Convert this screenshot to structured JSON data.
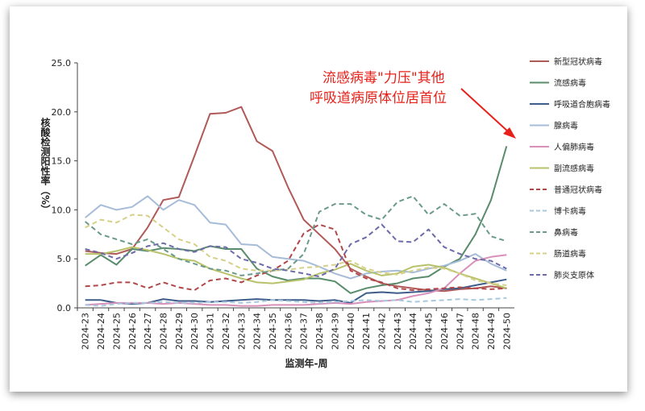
{
  "chart_data": {
    "type": "line",
    "xlabel": "监测年-周",
    "ylabel": "核酸检测阳性率（%）",
    "ylim": [
      0,
      25
    ],
    "yticks": [
      "0.0",
      "5.0",
      "10.0",
      "15.0",
      "20.0",
      "25.0"
    ],
    "grid": false,
    "legend_position": "right",
    "categories": [
      "2024-23",
      "2024-24",
      "2024-25",
      "2024-26",
      "2024-27",
      "2024-28",
      "2024-29",
      "2024-30",
      "2024-31",
      "2024-32",
      "2024-33",
      "2024-34",
      "2024-35",
      "2024-36",
      "2024-37",
      "2024-38",
      "2024-39",
      "2024-40",
      "2024-41",
      "2024-42",
      "2024-43",
      "2024-44",
      "2024-45",
      "2024-46",
      "2024-47",
      "2024-48",
      "2024-49",
      "2024-50"
    ],
    "annotation": [
      "流感病毒\"力压\"其他",
      "呼吸道病原体位居首位"
    ],
    "series": [
      {
        "name": "新型冠状病毒",
        "color": "#b05a58",
        "dash": "solid",
        "values": [
          5.8,
          5.6,
          5.5,
          6.0,
          8.2,
          11.0,
          11.3,
          15.5,
          19.8,
          19.9,
          20.5,
          17.0,
          16.0,
          12.3,
          9.0,
          7.5,
          6.0,
          4.0,
          3.2,
          2.5,
          2.2,
          2.0,
          1.8,
          1.7,
          1.9,
          2.0,
          2.2,
          2.0
        ]
      },
      {
        "name": "流感病毒",
        "color": "#5a8c6c",
        "dash": "solid",
        "values": [
          4.3,
          5.4,
          4.4,
          6.0,
          5.8,
          6.1,
          6.0,
          5.8,
          6.3,
          6.0,
          6.0,
          4.0,
          3.2,
          2.8,
          3.0,
          3.0,
          2.7,
          1.5,
          2.0,
          2.3,
          2.5,
          3.0,
          3.2,
          4.2,
          5.0,
          7.5,
          11.0,
          16.5
        ]
      },
      {
        "name": "呼吸道合胞病毒",
        "color": "#3f5d8a",
        "dash": "solid",
        "values": [
          0.8,
          0.8,
          0.5,
          0.4,
          0.5,
          0.9,
          0.7,
          0.7,
          0.6,
          0.7,
          0.8,
          0.9,
          0.8,
          0.8,
          0.8,
          0.7,
          0.8,
          0.5,
          1.5,
          1.6,
          1.5,
          1.6,
          1.7,
          1.9,
          2.0,
          2.3,
          2.6,
          2.9
        ]
      },
      {
        "name": "腺病毒",
        "color": "#a7bcd8",
        "dash": "solid",
        "values": [
          9.2,
          10.5,
          10.0,
          10.3,
          11.4,
          10.0,
          11.0,
          10.5,
          8.7,
          8.5,
          6.5,
          6.4,
          5.2,
          5.0,
          4.8,
          4.2,
          3.5,
          3.0,
          3.5,
          3.7,
          3.8,
          3.6,
          4.0,
          4.3,
          4.8,
          5.5,
          4.5,
          3.8
        ]
      },
      {
        "name": "人偏肺病毒",
        "color": "#d98fb9",
        "dash": "solid",
        "values": [
          0.3,
          0.4,
          0.5,
          0.5,
          0.5,
          0.4,
          0.5,
          0.4,
          0.3,
          0.3,
          0.2,
          0.2,
          0.3,
          0.3,
          0.3,
          0.4,
          0.5,
          0.4,
          0.6,
          0.7,
          0.8,
          1.2,
          1.5,
          2.0,
          3.5,
          4.8,
          5.2,
          5.4
        ]
      },
      {
        "name": "副流感病毒",
        "color": "#b8c26a",
        "dash": "solid",
        "values": [
          5.5,
          5.5,
          5.8,
          6.2,
          5.9,
          5.5,
          5.0,
          4.8,
          4.0,
          3.5,
          3.0,
          2.6,
          2.5,
          2.7,
          2.9,
          3.5,
          3.9,
          4.5,
          3.8,
          3.3,
          3.5,
          4.2,
          4.4,
          4.1,
          3.5,
          3.0,
          2.5,
          2.0
        ]
      },
      {
        "name": "普通冠状病毒",
        "color": "#b0484a",
        "dash": "dash",
        "values": [
          2.2,
          2.3,
          2.6,
          2.6,
          2.0,
          2.6,
          2.1,
          1.8,
          2.8,
          3.0,
          2.6,
          3.3,
          3.8,
          4.8,
          7.6,
          8.5,
          8.0,
          3.8,
          3.0,
          2.6,
          2.0,
          1.8,
          1.9,
          2.0,
          2.1,
          2.0,
          1.9,
          2.0
        ]
      },
      {
        "name": "博卡病毒",
        "color": "#a8c8de",
        "dash": "dash",
        "values": [
          0.3,
          0.2,
          0.4,
          0.5,
          0.5,
          0.6,
          0.5,
          0.5,
          0.6,
          0.6,
          0.5,
          0.6,
          0.8,
          0.7,
          0.6,
          0.5,
          0.6,
          0.7,
          0.8,
          0.7,
          0.8,
          0.6,
          0.7,
          0.8,
          0.9,
          0.8,
          0.9,
          1.0
        ]
      },
      {
        "name": "鼻病毒",
        "color": "#6a9a88",
        "dash": "dash",
        "values": [
          8.8,
          7.5,
          7.0,
          6.5,
          7.0,
          6.0,
          5.0,
          4.5,
          4.0,
          3.8,
          3.3,
          3.5,
          3.8,
          4.0,
          5.5,
          9.8,
          10.6,
          10.6,
          9.5,
          9.0,
          10.8,
          11.4,
          9.5,
          10.6,
          9.4,
          9.6,
          7.3,
          6.8
        ]
      },
      {
        "name": "肠道病毒",
        "color": "#d7d088",
        "dash": "dash",
        "values": [
          8.2,
          9.0,
          8.7,
          9.5,
          9.4,
          8.2,
          7.0,
          6.5,
          5.2,
          4.8,
          4.0,
          3.8,
          3.8,
          3.9,
          4.1,
          4.2,
          4.4,
          4.8,
          4.0,
          3.6,
          3.4,
          3.8,
          4.1,
          4.0,
          3.5,
          2.8,
          2.5,
          2.3
        ]
      },
      {
        "name": "肺炎支原体",
        "color": "#6c6aa8",
        "dash": "dash",
        "values": [
          6.0,
          5.6,
          5.0,
          5.6,
          6.3,
          6.6,
          6.0,
          5.7,
          6.3,
          6.2,
          5.0,
          4.6,
          4.0,
          3.8,
          3.5,
          3.2,
          4.0,
          6.5,
          7.2,
          8.5,
          6.8,
          6.7,
          8.0,
          6.2,
          5.5,
          5.0,
          4.8,
          4.0
        ]
      }
    ]
  }
}
